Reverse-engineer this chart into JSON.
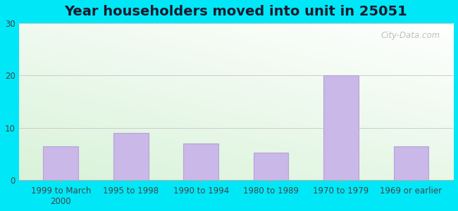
{
  "title": "Year householders moved into unit in 25051",
  "categories": [
    "1999 to March\n2000",
    "1995 to 1998",
    "1990 to 1994",
    "1980 to 1989",
    "1970 to 1979",
    "1969 or earlier"
  ],
  "values": [
    6.5,
    9.0,
    7.0,
    5.2,
    20.0,
    6.5
  ],
  "bar_color": "#c9b8e8",
  "bar_edge_color": "#b5a5d5",
  "ylim": [
    0,
    30
  ],
  "yticks": [
    0,
    10,
    20,
    30
  ],
  "bg_outer": "#00e8f8",
  "grid_color": "#cccccc",
  "title_fontsize": 14,
  "tick_fontsize": 8.5,
  "watermark_text": "City-Data.com",
  "gradient_top_color": "#e8f8f0",
  "gradient_bottom_color": "#c8ecd8"
}
